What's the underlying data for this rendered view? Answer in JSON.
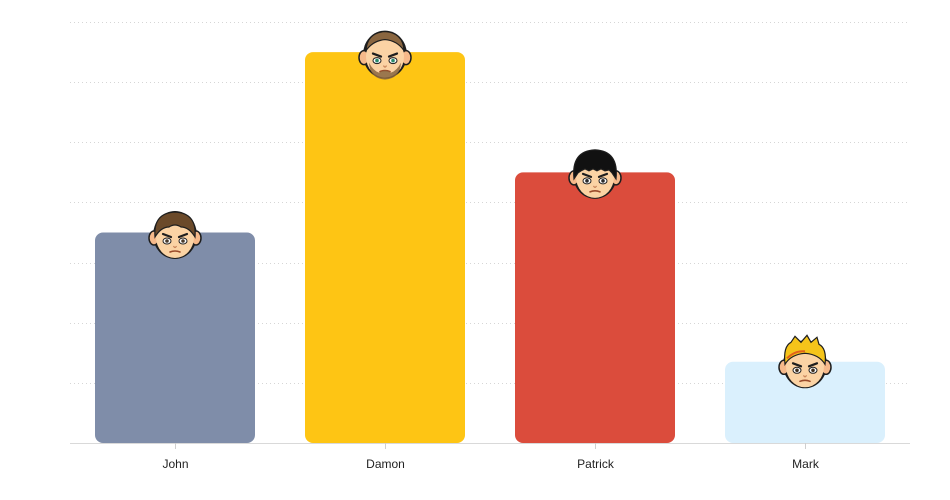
{
  "chart_data": {
    "type": "bar",
    "categories": [
      "John",
      "Damon",
      "Patrick",
      "Mark"
    ],
    "values": [
      35,
      65,
      45,
      13.5
    ],
    "ylim": [
      0,
      70
    ],
    "grid": true,
    "title": "",
    "xlabel": "",
    "ylabel": "",
    "colors": [
      "#7f8da9",
      "#fec514",
      "#db4c3c",
      "#daf0fd"
    ],
    "avatars": [
      "brown-hair-boy-avatar-icon",
      "bearded-man-avatar-icon",
      "black-hair-girl-avatar-icon",
      "blond-boy-avatar-icon"
    ]
  }
}
